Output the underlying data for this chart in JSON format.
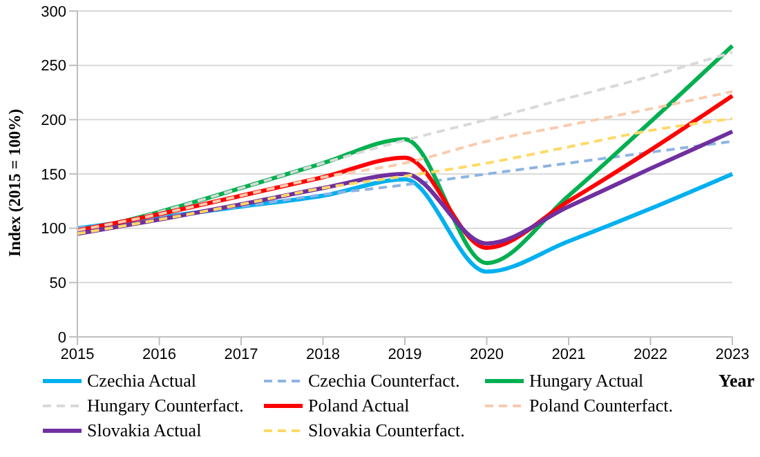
{
  "chart_data": {
    "type": "line",
    "xlabel": "Year",
    "ylabel": "Index (2015 = 100%)",
    "categories": [
      "2015",
      "2016",
      "2017",
      "2018",
      "2019",
      "2020",
      "2021",
      "2022",
      "2023"
    ],
    "ylim": [
      0,
      300
    ],
    "yticks": [
      0,
      50,
      100,
      150,
      200,
      250,
      300
    ],
    "grid": "y",
    "legend": "bottom",
    "marker": "none",
    "series": [
      {
        "name": "Czechia Actual",
        "color": "#00b0f0",
        "line_style": "solid",
        "values": [
          100,
          110,
          120,
          130,
          145,
          60,
          88,
          118,
          150
        ]
      },
      {
        "name": "Czechia Counterfact.",
        "color": "#8db4e2",
        "line_style": "dashed",
        "values": [
          100,
          110,
          120,
          131,
          140,
          150,
          160,
          170,
          180
        ]
      },
      {
        "name": "Hungary Actual",
        "color": "#00b050",
        "line_style": "solid",
        "values": [
          96,
          115,
          137,
          160,
          182,
          68,
          130,
          198,
          268
        ]
      },
      {
        "name": "Hungary Counterfact.",
        "color": "#d9d9d9",
        "line_style": "dashed",
        "values": [
          96,
          115,
          137,
          160,
          181,
          200,
          220,
          240,
          262
        ]
      },
      {
        "name": "Poland Actual",
        "color": "#ff0000",
        "line_style": "solid",
        "values": [
          98,
          113,
          130,
          147,
          165,
          82,
          125,
          172,
          222
        ]
      },
      {
        "name": "Poland Counterfact.",
        "color": "#f8cbad",
        "line_style": "dashed",
        "values": [
          98,
          113,
          130,
          147,
          160,
          180,
          195,
          210,
          226
        ]
      },
      {
        "name": "Slovakia Actual",
        "color": "#7030a0",
        "line_style": "solid",
        "values": [
          95,
          108,
          122,
          137,
          150,
          86,
          120,
          155,
          189
        ]
      },
      {
        "name": "Slovakia Counterfact.",
        "color": "#ffd966",
        "line_style": "dashed",
        "values": [
          95,
          108,
          122,
          137,
          148,
          160,
          175,
          190,
          201
        ]
      }
    ]
  }
}
